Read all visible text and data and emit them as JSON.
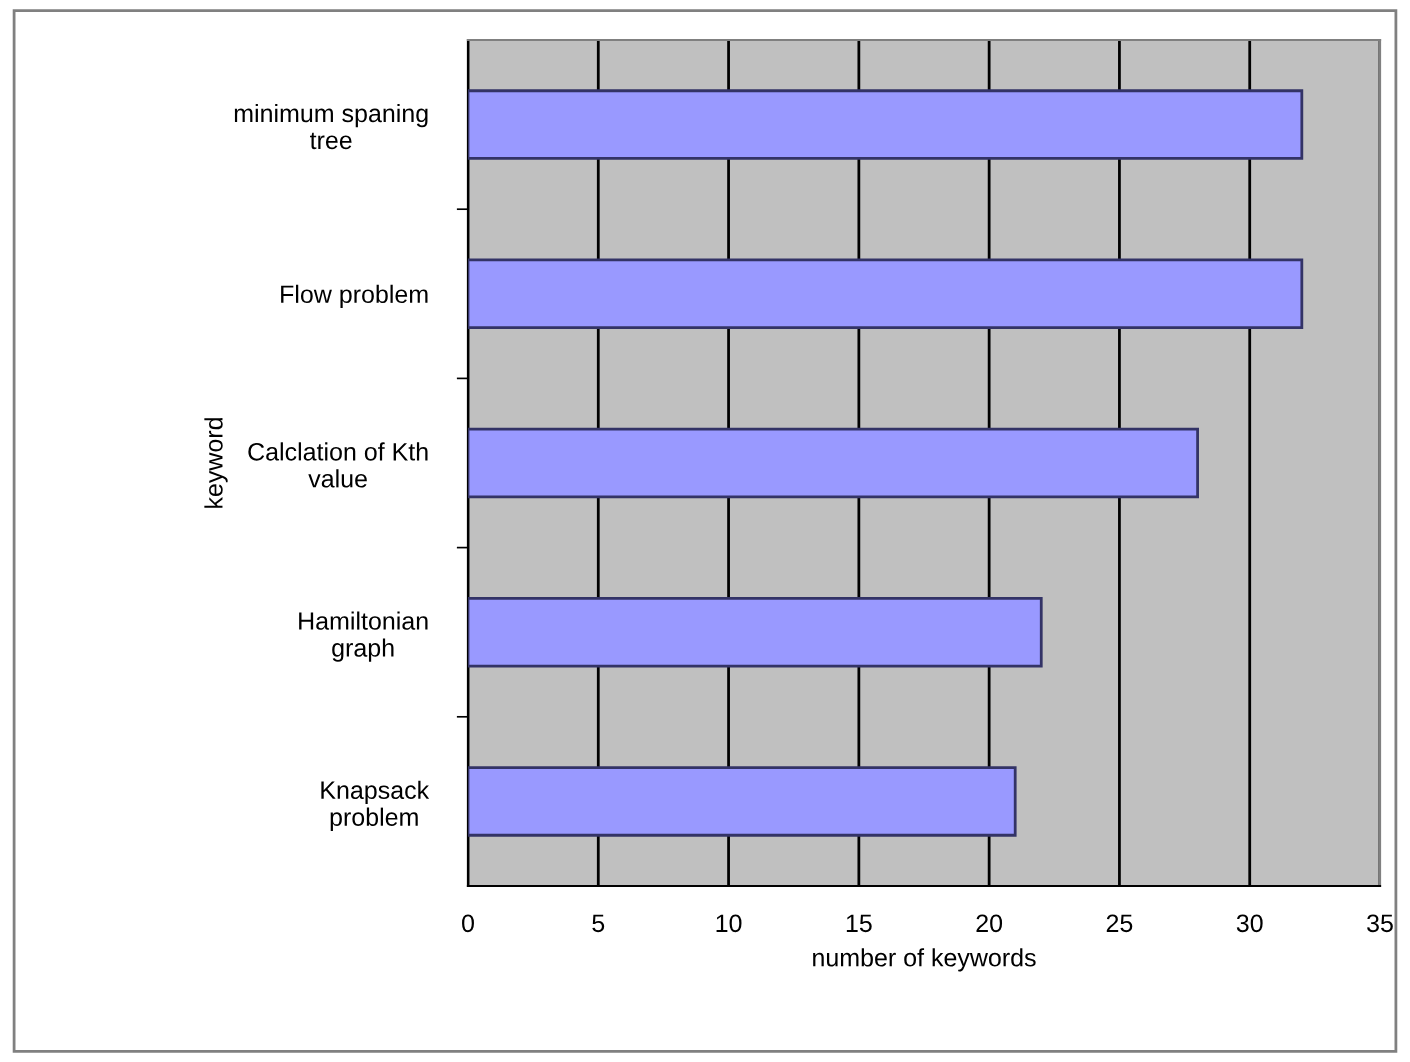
{
  "chart_data": {
    "type": "bar",
    "orientation": "horizontal",
    "categories": [
      "minimum spaning\ntree",
      "Flow problem",
      "Calclation of Kth\nvalue",
      "Hamiltonian\ngraph",
      "Knapsack\nproblem"
    ],
    "values": [
      32,
      32,
      28,
      22,
      21
    ],
    "color": "#9999ff",
    "xlabel": "number of keywords",
    "ylabel": "keyword",
    "xlim": [
      0,
      35
    ],
    "xticks": [
      0,
      5,
      10,
      15,
      20,
      25,
      30,
      35
    ],
    "grid": "x",
    "legend": false
  }
}
